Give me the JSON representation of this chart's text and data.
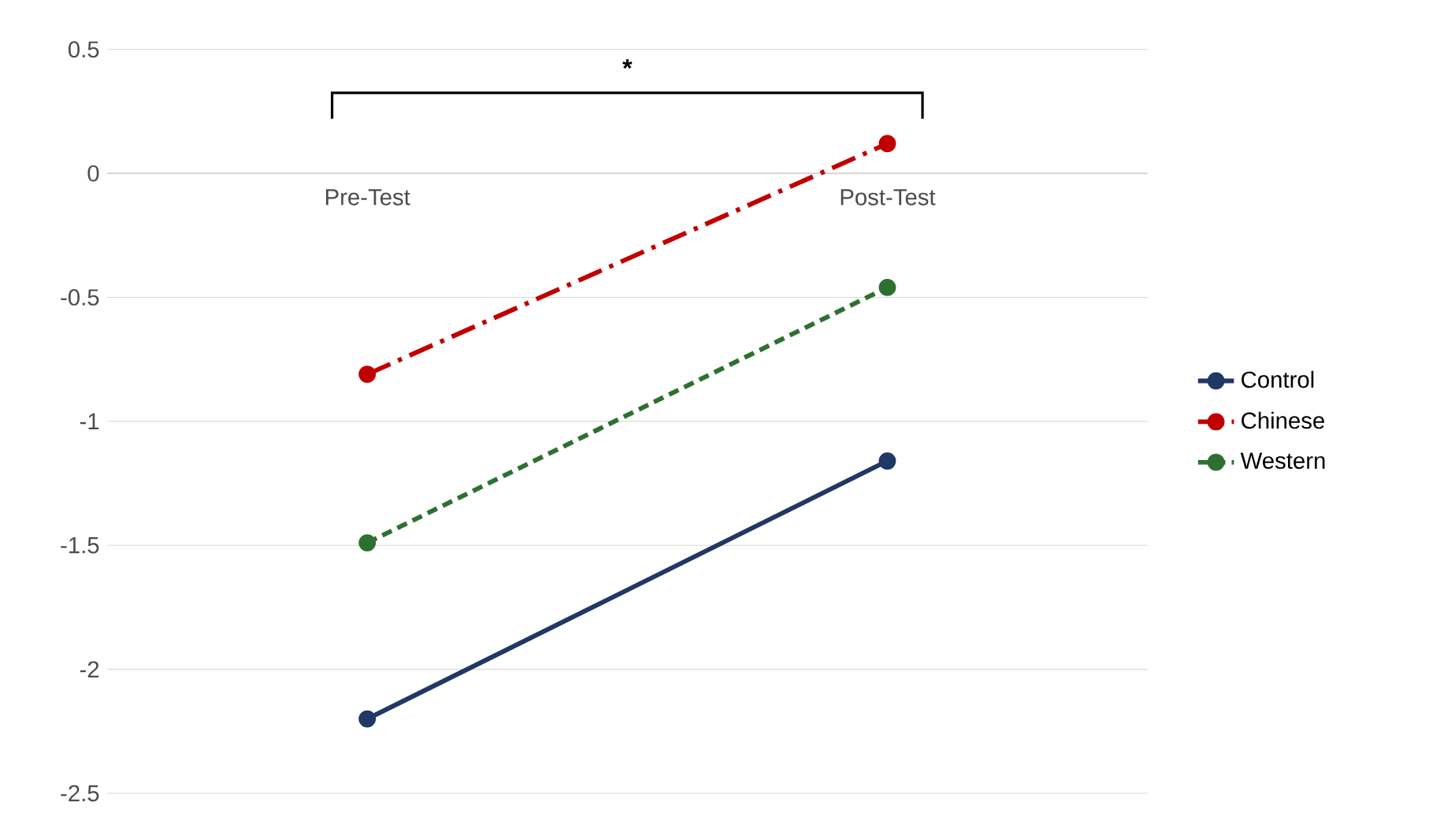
{
  "chart_data": {
    "type": "line",
    "categories": [
      "Pre-Test",
      "Post-Test"
    ],
    "series": [
      {
        "name": "Control",
        "color": "#1f3864",
        "line_style": "solid",
        "values": [
          -2.2,
          -1.16
        ]
      },
      {
        "name": "Chinese",
        "color": "#c00000",
        "line_style": "dashdot",
        "values": [
          -0.81,
          0.12
        ]
      },
      {
        "name": "Western",
        "color": "#2e7031",
        "line_style": "dashed",
        "values": [
          -1.49,
          -0.46
        ]
      }
    ],
    "ylim": [
      -2.5,
      0.5
    ],
    "yticks": [
      {
        "value": -2.5,
        "label": "-2.5"
      },
      {
        "value": -2,
        "label": "-2"
      },
      {
        "value": -1.5,
        "label": "-1.5"
      },
      {
        "value": -1,
        "label": "-1"
      },
      {
        "value": -0.5,
        "label": "-0.5"
      },
      {
        "value": 0,
        "label": "0"
      },
      {
        "value": 0.5,
        "label": "0.5"
      }
    ],
    "grid": "y",
    "legend": "right",
    "marker": "circle",
    "annotations": [
      "*"
    ]
  }
}
